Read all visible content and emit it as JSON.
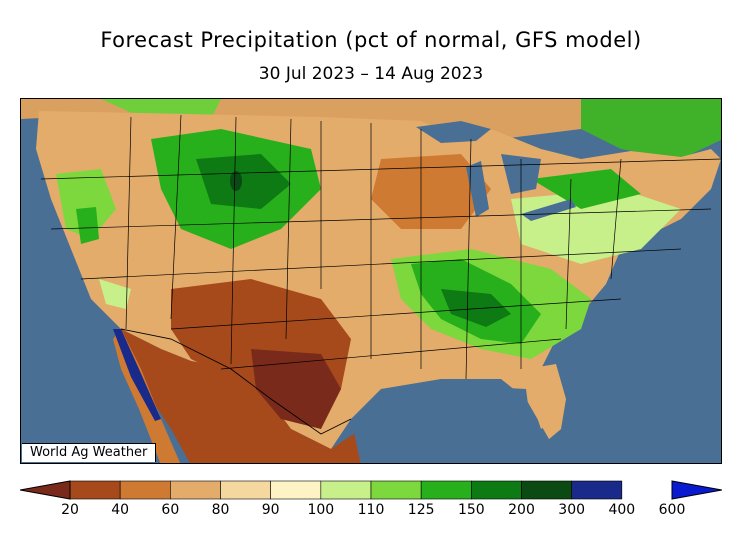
{
  "header": {
    "title": "Forecast Precipitation (pct of normal, GFS model)",
    "date_range": "30 Jul 2023 – 14 Aug 2023"
  },
  "map": {
    "credit": "World Ag Weather",
    "ocean_color": "#4a6f95"
  },
  "legend": {
    "bins": [
      {
        "upper": "20",
        "color": "#7a2a1a"
      },
      {
        "upper": "40",
        "color": "#a64a1c"
      },
      {
        "upper": "60",
        "color": "#cf7a32"
      },
      {
        "upper": "80",
        "color": "#e4ac6b"
      },
      {
        "upper": "90",
        "color": "#f4d8a0"
      },
      {
        "upper": "100",
        "color": "#fdf3c4"
      },
      {
        "upper": "110",
        "color": "#c8f08a"
      },
      {
        "upper": "125",
        "color": "#7cd83c"
      },
      {
        "upper": "150",
        "color": "#27b01c"
      },
      {
        "upper": "200",
        "color": "#0d7a14"
      },
      {
        "upper": "300",
        "color": "#0b4a12"
      },
      {
        "upper": "400",
        "color": "#1a2a8a"
      },
      {
        "upper": "600",
        "color": "#0a1ad0"
      }
    ],
    "tick_labels": [
      "20",
      "40",
      "60",
      "80",
      "90",
      "100",
      "110",
      "125",
      "150",
      "200",
      "300",
      "400",
      "600"
    ],
    "low_arrow_color": "#7a2a1a",
    "high_arrow_color": "#0a1ad0"
  }
}
